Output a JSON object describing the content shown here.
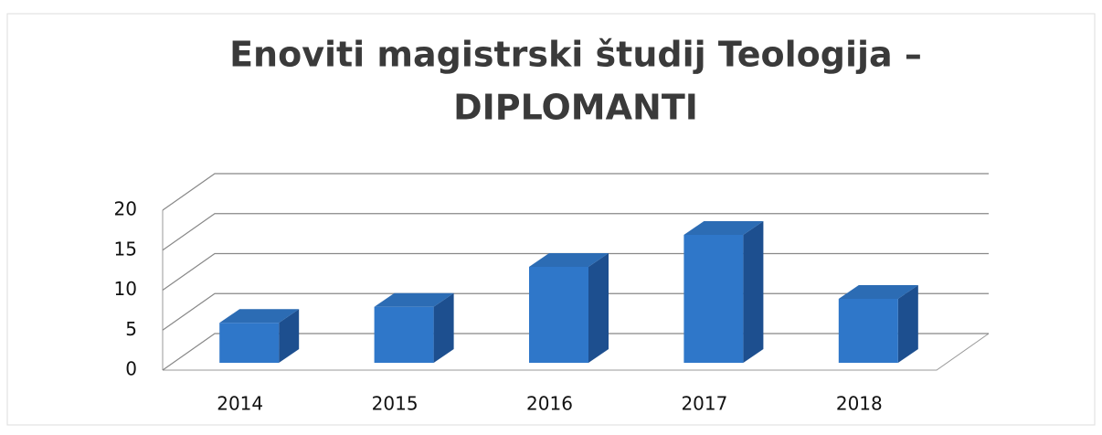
{
  "chart_data": {
    "type": "bar3d",
    "title": [
      "Enoviti magistrski študij Teologija –",
      "DIPLOMANTI"
    ],
    "categories": [
      "2014",
      "2015",
      "2016",
      "2017",
      "2018"
    ],
    "values": [
      5,
      7,
      12,
      16,
      8
    ],
    "color": "#2f77c9",
    "ylim": [
      0,
      20
    ],
    "yticks": [
      0,
      5,
      10,
      15,
      20
    ],
    "grid": true
  }
}
